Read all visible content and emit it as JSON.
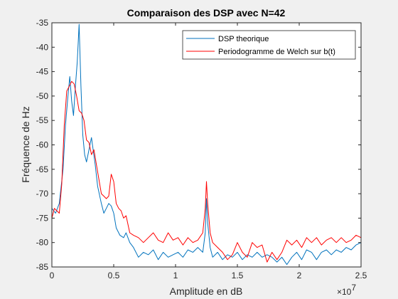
{
  "chart_data": {
    "type": "line",
    "title": "Comparaison des DSP avec N=42",
    "xlabel": "Amplitude en dB",
    "ylabel": "Fréquence de Hz",
    "x_exponent_base": "×10",
    "x_exponent_power": "7",
    "xlim": [
      0,
      2.5
    ],
    "ylim": [
      -85,
      -35
    ],
    "x_ticks": [
      0,
      0.5,
      1,
      1.5,
      2,
      2.5
    ],
    "x_tick_labels": [
      "0",
      "0.5",
      "1",
      "1.5",
      "2",
      "2.5"
    ],
    "y_ticks": [
      -85,
      -80,
      -75,
      -70,
      -65,
      -60,
      -55,
      -50,
      -45,
      -40,
      -35
    ],
    "y_tick_labels": [
      "-85",
      "-80",
      "-75",
      "-70",
      "-65",
      "-60",
      "-55",
      "-50",
      "-45",
      "-40",
      "-35"
    ],
    "grid": false,
    "legend_position": "top-right",
    "colors": {
      "theory": "#0072bd",
      "welch": "#ff0000"
    },
    "series": [
      {
        "name": "DSP theorique",
        "color": "#0072bd",
        "x": [
          0,
          0.03,
          0.06,
          0.09,
          0.11,
          0.13,
          0.145,
          0.16,
          0.175,
          0.19,
          0.205,
          0.22,
          0.235,
          0.25,
          0.265,
          0.28,
          0.3,
          0.32,
          0.35,
          0.37,
          0.4,
          0.42,
          0.44,
          0.46,
          0.48,
          0.5,
          0.52,
          0.55,
          0.58,
          0.6,
          0.63,
          0.66,
          0.7,
          0.74,
          0.78,
          0.82,
          0.86,
          0.9,
          0.94,
          0.98,
          1.02,
          1.06,
          1.1,
          1.14,
          1.18,
          1.22,
          1.24,
          1.25,
          1.26,
          1.28,
          1.3,
          1.34,
          1.38,
          1.42,
          1.46,
          1.5,
          1.54,
          1.58,
          1.62,
          1.66,
          1.7,
          1.74,
          1.78,
          1.82,
          1.86,
          1.9,
          1.94,
          1.98,
          2.02,
          2.06,
          2.1,
          2.14,
          2.18,
          2.22,
          2.26,
          2.3,
          2.34,
          2.38,
          2.42,
          2.46,
          2.5
        ],
        "values": [
          -73,
          -74,
          -72,
          -65,
          -56,
          -50,
          -46,
          -51,
          -54,
          -48,
          -43,
          -35.3,
          -48,
          -58,
          -62,
          -63.5,
          -61,
          -58.5,
          -64,
          -68.5,
          -72,
          -74,
          -73,
          -72,
          -72.5,
          -74,
          -77,
          -78.5,
          -79,
          -78,
          -80,
          -81,
          -83,
          -82,
          -82.5,
          -81.5,
          -83.5,
          -82,
          -83,
          -82.5,
          -82,
          -83,
          -81.5,
          -82,
          -81,
          -82,
          -78,
          -71,
          -76,
          -81,
          -83,
          -82,
          -83.5,
          -82.5,
          -83,
          -82,
          -83.5,
          -82.5,
          -83,
          -82,
          -83,
          -82.5,
          -83,
          -84,
          -83,
          -84.5,
          -83,
          -82,
          -83.5,
          -81.5,
          -82,
          -83.5,
          -82,
          -81.5,
          -82.5,
          -81.5,
          -82,
          -81,
          -81.5,
          -80.5,
          -80
        ]
      },
      {
        "name": "Periodogramme de Welch sur b(t)",
        "color": "#ff0000",
        "x": [
          0,
          0.02,
          0.04,
          0.06,
          0.08,
          0.1,
          0.12,
          0.14,
          0.16,
          0.18,
          0.2,
          0.22,
          0.24,
          0.26,
          0.28,
          0.3,
          0.32,
          0.34,
          0.36,
          0.38,
          0.4,
          0.42,
          0.44,
          0.46,
          0.48,
          0.5,
          0.52,
          0.54,
          0.56,
          0.58,
          0.6,
          0.63,
          0.66,
          0.7,
          0.74,
          0.78,
          0.82,
          0.86,
          0.9,
          0.94,
          0.98,
          1.02,
          1.06,
          1.1,
          1.14,
          1.18,
          1.22,
          1.24,
          1.25,
          1.26,
          1.28,
          1.3,
          1.34,
          1.38,
          1.42,
          1.46,
          1.5,
          1.54,
          1.58,
          1.62,
          1.66,
          1.7,
          1.74,
          1.78,
          1.82,
          1.86,
          1.9,
          1.94,
          1.98,
          2.02,
          2.06,
          2.1,
          2.14,
          2.18,
          2.22,
          2.26,
          2.3,
          2.34,
          2.38,
          2.42,
          2.46,
          2.5
        ],
        "values": [
          -75,
          -73,
          -73.5,
          -74,
          -68,
          -56,
          -49,
          -48,
          -47,
          -47.5,
          -50,
          -53,
          -53.5,
          -55,
          -59,
          -59.5,
          -62,
          -61,
          -64,
          -67,
          -70,
          -70.5,
          -71,
          -70.5,
          -66,
          -67.5,
          -72,
          -73,
          -73.5,
          -75,
          -74.5,
          -78,
          -78.5,
          -79,
          -80,
          -79,
          -78,
          -79.5,
          -80,
          -78,
          -79.5,
          -79,
          -80.5,
          -79,
          -80,
          -79.5,
          -78,
          -73,
          -67.5,
          -72,
          -78,
          -80,
          -81,
          -82,
          -83.5,
          -82.5,
          -80,
          -82,
          -83,
          -80,
          -81,
          -80.5,
          -84,
          -82,
          -83.5,
          -82,
          -79.5,
          -80.5,
          -79.5,
          -81,
          -79,
          -80,
          -79,
          -80.5,
          -79.5,
          -79,
          -80,
          -79,
          -80,
          -79.5,
          -78.5,
          -79
        ]
      }
    ]
  }
}
